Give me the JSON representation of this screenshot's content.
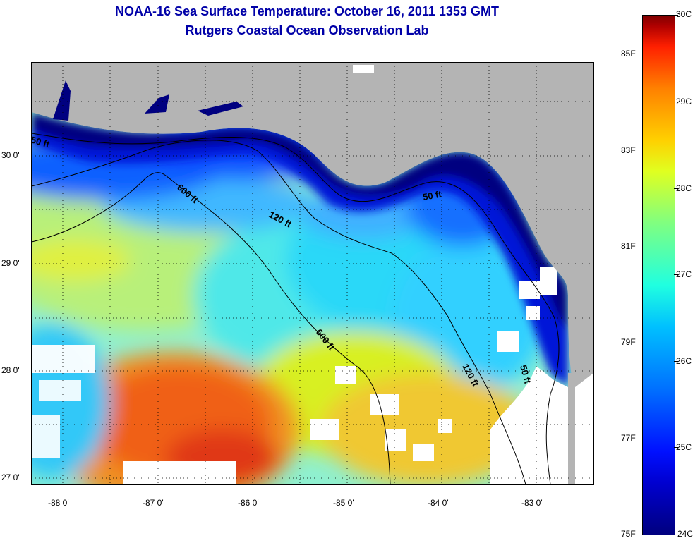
{
  "header": {
    "title": "NOAA-16 Sea Surface Temperature:  October 16, 2011 1353 GMT",
    "subtitle": "Rutgers Coastal Ocean Observation Lab"
  },
  "map": {
    "lon_labels": [
      "-88 0'",
      "-87 0'",
      "-86 0'",
      "-85 0'",
      "-84 0'",
      "-83 0'"
    ],
    "lat_labels": [
      "30 0'",
      "29 0'",
      "28 0'",
      "27 0'"
    ],
    "lon_range": [
      -88.35,
      -82.45
    ],
    "lat_range": [
      26.98,
      30.85
    ],
    "land_color": "#b4b4b4",
    "cloud_color": "#ffffff",
    "grid": "dotted",
    "contours": [
      {
        "label": "50 ft",
        "depth_ft": 50
      },
      {
        "label": "120 ft",
        "depth_ft": 120
      },
      {
        "label": "600 ft",
        "depth_ft": 600
      }
    ]
  },
  "colorbar": {
    "celsius_labels": [
      "30C",
      "29C",
      "28C",
      "27C",
      "26C",
      "25C",
      "24C"
    ],
    "fahrenheit_labels": [
      "85F",
      "83F",
      "81F",
      "79F",
      "77F",
      "75F"
    ],
    "range_c": [
      24,
      30
    ],
    "colormap": "jet"
  }
}
